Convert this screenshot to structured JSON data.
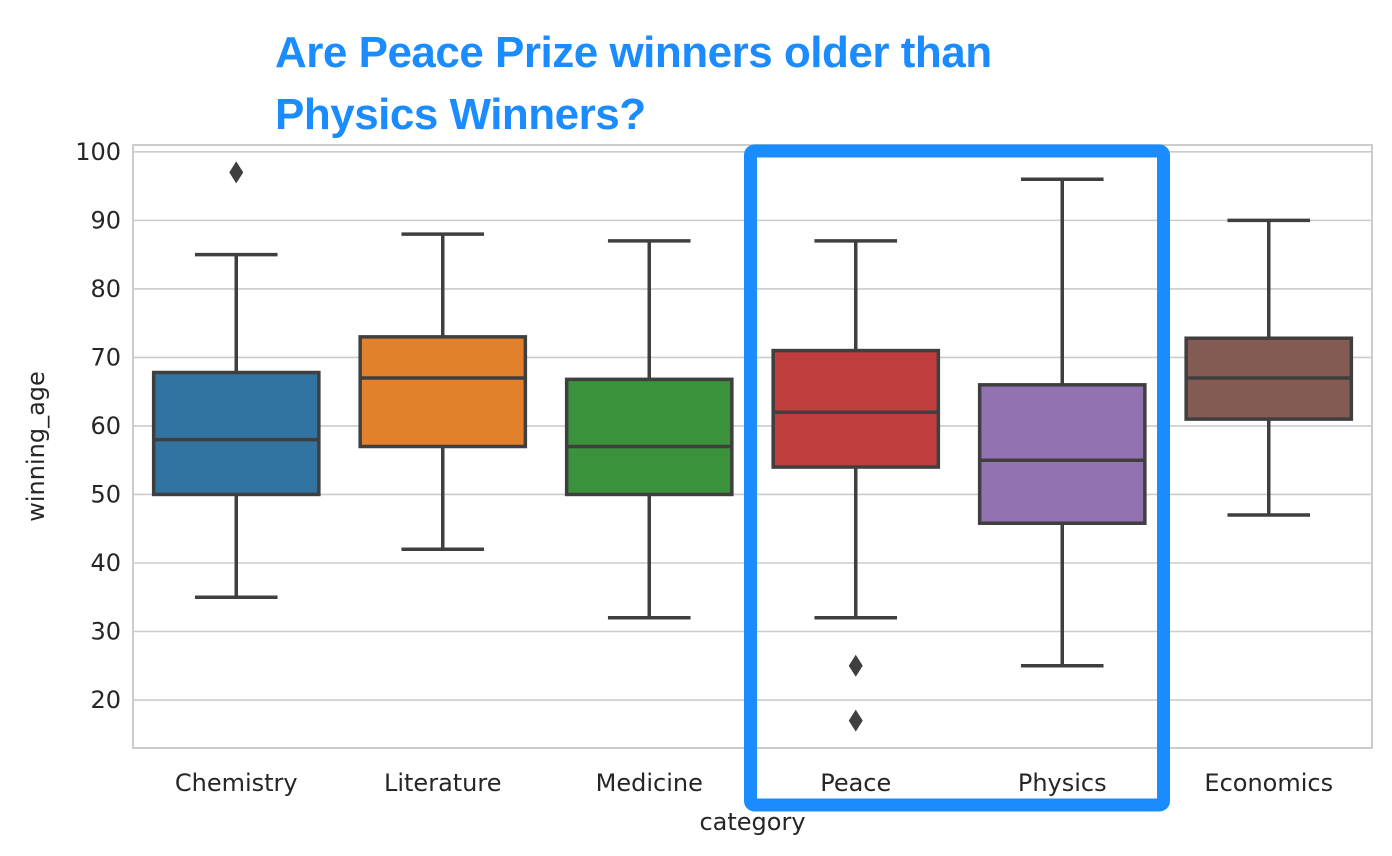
{
  "chart_data": {
    "type": "box",
    "title": [
      "Are Peace Prize winners older than",
      "Physics Winners?"
    ],
    "xlabel": "category",
    "ylabel": "winning_age",
    "ylim": [
      13,
      101
    ],
    "yticks": [
      20,
      30,
      40,
      50,
      60,
      70,
      80,
      90,
      100
    ],
    "grid": true,
    "categories": [
      "Chemistry",
      "Literature",
      "Medicine",
      "Peace",
      "Physics",
      "Economics"
    ],
    "boxes": [
      {
        "category": "Chemistry",
        "whisker_low": 35,
        "q1": 50,
        "median": 58,
        "q3": 67.8,
        "whisker_high": 85,
        "outliers": [
          97
        ],
        "color": "#3274a1"
      },
      {
        "category": "Literature",
        "whisker_low": 42,
        "q1": 57,
        "median": 67,
        "q3": 73,
        "whisker_high": 88,
        "outliers": [],
        "color": "#e1812c"
      },
      {
        "category": "Medicine",
        "whisker_low": 32,
        "q1": 50,
        "median": 57,
        "q3": 66.8,
        "whisker_high": 87,
        "outliers": [],
        "color": "#3a923a"
      },
      {
        "category": "Peace",
        "whisker_low": 32,
        "q1": 54,
        "median": 62,
        "q3": 71,
        "whisker_high": 87,
        "outliers": [
          25,
          17
        ],
        "color": "#c03d3e"
      },
      {
        "category": "Physics",
        "whisker_low": 25,
        "q1": 45.8,
        "median": 55,
        "q3": 66,
        "whisker_high": 96,
        "outliers": [],
        "color": "#9372b2"
      },
      {
        "category": "Economics",
        "whisker_low": 47,
        "q1": 61,
        "median": 67,
        "q3": 72.8,
        "whisker_high": 90,
        "outliers": [],
        "color": "#845b53"
      }
    ],
    "highlight": {
      "categories": [
        "Peace",
        "Physics"
      ],
      "color": "#1a8cff"
    }
  }
}
